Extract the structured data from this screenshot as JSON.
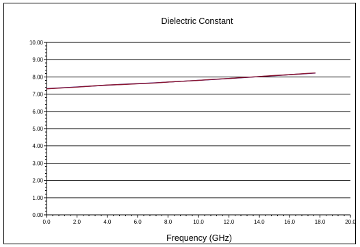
{
  "chart_data": {
    "type": "line",
    "title": "Dielectric Constant",
    "xlabel": "Frequency (GHz)",
    "ylabel": "",
    "xlim": [
      0,
      20
    ],
    "ylim": [
      0,
      10
    ],
    "x_ticks": [
      "0.0",
      "2.0",
      "4.0",
      "6.0",
      "8.0",
      "10.0",
      "12.0",
      "14.0",
      "16.0",
      "18.0",
      "20.0"
    ],
    "y_ticks": [
      "0.00",
      "1.00",
      "2.00",
      "3.00",
      "4.00",
      "5.00",
      "6.00",
      "7.00",
      "8.00",
      "9.00",
      "10.00"
    ],
    "grid": "horizontal",
    "legend": "none",
    "series": [
      {
        "color": "#3b1a8c",
        "x": [
          0.0,
          1.0,
          2.0,
          3.0,
          4.0,
          5.0,
          6.0,
          7.0,
          8.0,
          9.0,
          10.0,
          11.0,
          12.0,
          13.0,
          14.0,
          15.0,
          16.0,
          17.0,
          17.7
        ],
        "y": [
          7.32,
          7.37,
          7.42,
          7.47,
          7.52,
          7.57,
          7.61,
          7.65,
          7.7,
          7.75,
          7.8,
          7.85,
          7.91,
          7.96,
          8.02,
          8.07,
          8.13,
          8.18,
          8.22
        ]
      },
      {
        "color": "#8a1530",
        "x": [
          0.0,
          1.0,
          2.0,
          3.0,
          4.0,
          5.0,
          6.0,
          7.0,
          8.0,
          9.0,
          10.0,
          11.0,
          12.0,
          13.0,
          14.0,
          15.0,
          16.0,
          17.0,
          17.7
        ],
        "y": [
          7.31,
          7.36,
          7.41,
          7.47,
          7.53,
          7.56,
          7.6,
          7.64,
          7.7,
          7.75,
          7.8,
          7.86,
          7.91,
          7.97,
          8.02,
          8.08,
          8.13,
          8.19,
          8.23
        ]
      }
    ]
  }
}
